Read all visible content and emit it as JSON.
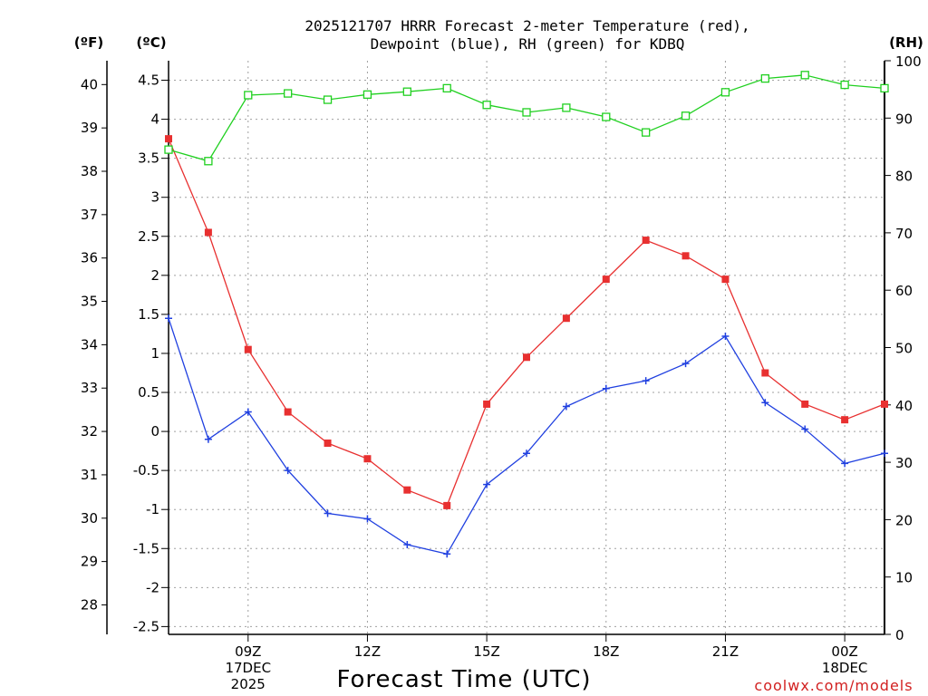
{
  "chart_data": {
    "type": "line",
    "title": [
      "2025121707 HRRR Forecast 2-meter Temperature (red),",
      "Dewpoint (blue), RH (green) for KDBQ"
    ],
    "xlabel": "Forecast Time (UTC)",
    "credit": "coolwx.com/models",
    "units": {
      "fahrenheit": "(ºF)",
      "celsius": "(ºC)",
      "rh": "(RH)"
    },
    "x": [
      7,
      8,
      9,
      10,
      11,
      12,
      13,
      14,
      15,
      16,
      17,
      18,
      19,
      20,
      21,
      22,
      23,
      24,
      25
    ],
    "xlim": [
      7,
      25
    ],
    "x_ticks": [
      {
        "x": 9,
        "label": "09Z",
        "sub": [
          "17DEC",
          "2025"
        ]
      },
      {
        "x": 12,
        "label": "12Z",
        "sub": []
      },
      {
        "x": 15,
        "label": "15Z",
        "sub": []
      },
      {
        "x": 18,
        "label": "18Z",
        "sub": []
      },
      {
        "x": 21,
        "label": "21Z",
        "sub": []
      },
      {
        "x": 24,
        "label": "00Z",
        "sub": [
          "18DEC"
        ]
      }
    ],
    "y_celsius": {
      "lim": [
        -2.6,
        4.75
      ],
      "ticks": [
        "-2.5",
        "-2",
        "-1.5",
        "-1",
        "-0.5",
        "0",
        "0.5",
        "1",
        "1.5",
        "2",
        "2.5",
        "3",
        "3.5",
        "4",
        "4.5"
      ]
    },
    "y_fahrenheit": {
      "ticks": [
        "28",
        "29",
        "30",
        "31",
        "32",
        "33",
        "34",
        "35",
        "36",
        "37",
        "38",
        "39",
        "40"
      ]
    },
    "y_rh": {
      "lim": [
        0,
        100
      ],
      "ticks": [
        "0",
        "10",
        "20",
        "30",
        "40",
        "50",
        "60",
        "70",
        "80",
        "90",
        "100"
      ]
    },
    "series": [
      {
        "name": "Temperature",
        "axis": "celsius",
        "color": "#e83030",
        "marker": "filled-square",
        "values": [
          3.75,
          2.55,
          1.05,
          0.25,
          -0.15,
          -0.35,
          -0.75,
          -0.95,
          0.35,
          0.95,
          1.45,
          1.95,
          2.45,
          2.25,
          1.95,
          0.75,
          0.35,
          0.15,
          0.35
        ]
      },
      {
        "name": "Dewpoint",
        "axis": "celsius",
        "color": "#2040e0",
        "marker": "plus",
        "values": [
          1.45,
          -0.1,
          0.25,
          -0.5,
          -1.05,
          -1.12,
          -1.45,
          -1.57,
          -0.68,
          -0.28,
          0.32,
          0.55,
          0.65,
          0.87,
          1.22,
          0.37,
          0.03,
          -0.41,
          -0.28
        ]
      },
      {
        "name": "RH",
        "axis": "rh",
        "color": "#20d020",
        "marker": "open-square",
        "values": [
          84.5,
          82.5,
          94.0,
          94.3,
          93.2,
          94.1,
          94.6,
          95.2,
          92.3,
          91.0,
          91.8,
          90.2,
          87.5,
          90.4,
          94.5,
          96.9,
          97.5,
          95.8,
          95.2
        ]
      }
    ]
  }
}
